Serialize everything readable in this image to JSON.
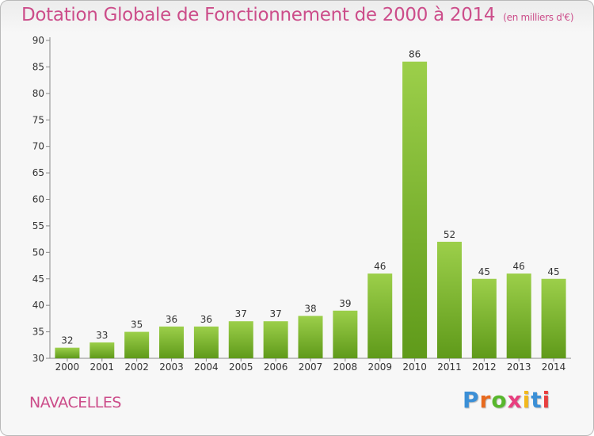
{
  "chart_data": {
    "type": "bar",
    "title": "Dotation Globale de Fonctionnement de 2000 à 2014",
    "subtitle": "(en milliers d'€)",
    "categories": [
      "2000",
      "2001",
      "2002",
      "2003",
      "2004",
      "2005",
      "2006",
      "2007",
      "2008",
      "2009",
      "2010",
      "2011",
      "2012",
      "2013",
      "2014"
    ],
    "values": [
      32,
      33,
      35,
      36,
      36,
      37,
      37,
      38,
      39,
      46,
      86,
      52,
      45,
      46,
      45
    ],
    "ylim": [
      30,
      90
    ],
    "yticks": [
      30,
      35,
      40,
      45,
      50,
      55,
      60,
      65,
      70,
      75,
      80,
      85,
      90
    ],
    "grid": false,
    "colors": {
      "bar_top": "#9ccf4a",
      "bar_bottom": "#5f9a1a",
      "title": "#cc4d8a",
      "axis": "#888888",
      "text": "#333333"
    }
  },
  "footer": {
    "commune": "NAVACELLES",
    "brand": "Proxiti",
    "brand_colors": [
      "#3b8fd6",
      "#e86a1e",
      "#58b72d",
      "#e83f7f",
      "#f2b81c",
      "#3b8fd6",
      "#e83f3f"
    ]
  }
}
